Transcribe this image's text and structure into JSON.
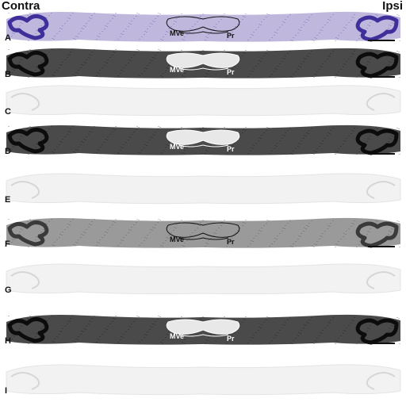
{
  "header": {
    "left_label": "Contra",
    "right_label": "Ipsi"
  },
  "panels": [
    {
      "letter": "A",
      "style": "nissl",
      "regions": [
        "MVe",
        "Pr"
      ],
      "label_color": "#111111",
      "scale_bar": true
    },
    {
      "letter": "B",
      "style": "dark",
      "regions": [
        "MVe",
        "Pr"
      ],
      "label_color": "#ffffff",
      "scale_bar": true
    },
    {
      "letter": "C",
      "style": "blank",
      "regions": [],
      "label_color": "#111111",
      "scale_bar": false
    },
    {
      "letter": "D",
      "style": "dark",
      "regions": [
        "MVe",
        "Pr"
      ],
      "label_color": "#ffffff",
      "scale_bar": true
    },
    {
      "letter": "E",
      "style": "blank",
      "regions": [],
      "label_color": "#111111",
      "scale_bar": false
    },
    {
      "letter": "F",
      "style": "medium",
      "regions": [
        "MVe",
        "Pr"
      ],
      "label_color": "#111111",
      "scale_bar": true
    },
    {
      "letter": "G",
      "style": "blank",
      "regions": [],
      "label_color": "#111111",
      "scale_bar": false
    },
    {
      "letter": "H",
      "style": "dark",
      "regions": [
        "MVe",
        "Pr"
      ],
      "label_color": "#ffffff",
      "scale_bar": true
    },
    {
      "letter": "I",
      "style": "blank",
      "regions": [],
      "label_color": "#111111",
      "scale_bar": false
    }
  ],
  "colors": {
    "nissl_bg": "#bfb8dc",
    "nissl_dark": "#3f2f9a",
    "dark_bg": "#4a4a4a",
    "dark_ink": "#0c0c0c",
    "medium_bg": "#9a9a9a",
    "medium_ink": "#3a3a3a",
    "blank_bg": "#f2f2f2",
    "blank_ink": "#d6d6d6"
  }
}
